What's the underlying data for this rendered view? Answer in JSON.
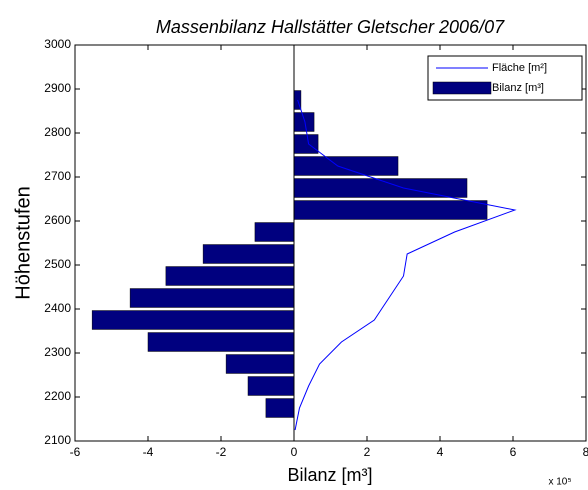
{
  "chart_data": {
    "type": "bar",
    "orientation": "horizontal",
    "title": "Massenbilanz Hallstätter Gletscher 2006/07",
    "x_label": "Bilanz [m³]",
    "y_label": "Höhenstufen",
    "x_multiplier": "x 10⁵",
    "xlim": [
      -6,
      8
    ],
    "xticks": [
      -6,
      -4,
      -2,
      0,
      2,
      4,
      6,
      8
    ],
    "ylim": [
      2100,
      3000
    ],
    "yticks": [
      2100,
      2200,
      2300,
      2400,
      2500,
      2600,
      2700,
      2800,
      2900,
      3000
    ],
    "legend": "top-right",
    "series": [
      {
        "name": "Fläche [m²]",
        "type": "line",
        "color": "#0000ff",
        "y": [
          2125,
          2175,
          2225,
          2275,
          2325,
          2375,
          2425,
          2475,
          2525,
          2575,
          2625,
          2675,
          2725,
          2775,
          2825,
          2875
        ],
        "values": [
          0.03,
          0.15,
          0.4,
          0.7,
          1.3,
          2.2,
          2.6,
          3.0,
          3.1,
          4.4,
          6.05,
          3.0,
          1.2,
          0.4,
          0.3,
          0.1
        ]
      },
      {
        "name": "Bilanz [m³]",
        "type": "bar",
        "color": "#00007f",
        "y": [
          2175,
          2225,
          2275,
          2325,
          2375,
          2425,
          2475,
          2525,
          2575,
          2625,
          2675,
          2725,
          2775,
          2825,
          2875
        ],
        "values": [
          -0.77,
          -1.26,
          -1.86,
          -4.0,
          -5.53,
          -4.49,
          -3.51,
          -2.49,
          -1.07,
          5.29,
          4.74,
          2.85,
          0.66,
          0.55,
          0.19
        ]
      }
    ]
  }
}
